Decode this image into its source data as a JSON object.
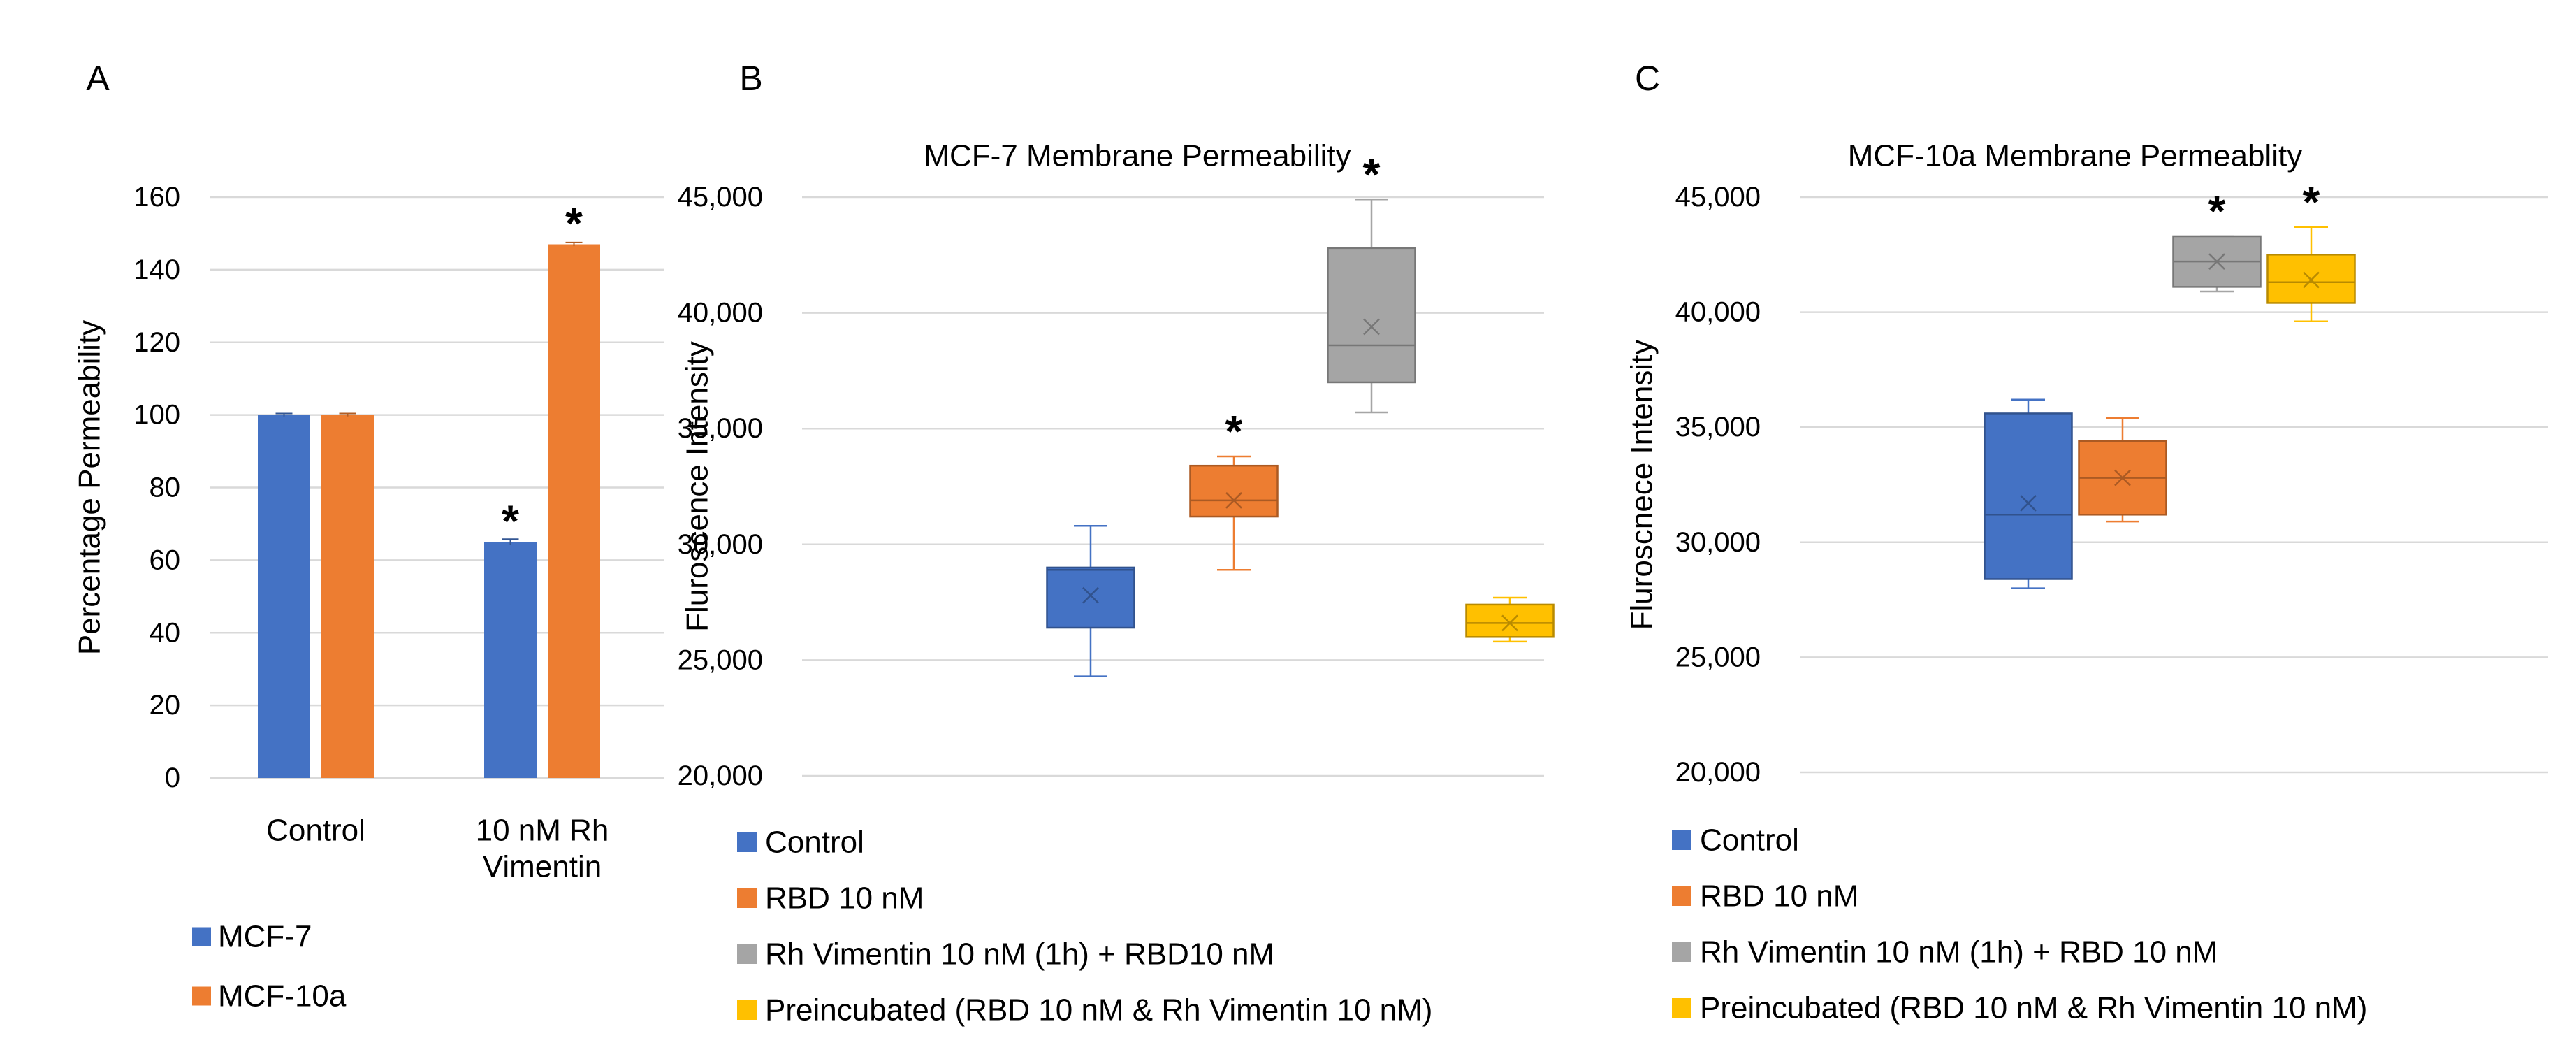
{
  "colors": {
    "Control": "#4472c4",
    "RBD": "#ed7d31",
    "Rh Vimentin": "#a5a5a5",
    "Preincubated": "#ffc000",
    "grid": "#d9d9d9"
  },
  "chart_data": [
    {
      "panel": "A",
      "type": "bar",
      "title": "",
      "xlabel": "",
      "ylabel": "Percentage Permeability",
      "ylim": [
        0,
        160
      ],
      "yticks": [
        "0",
        "20",
        "40",
        "60",
        "80",
        "100",
        "120",
        "140",
        "160"
      ],
      "categories": [
        {
          "lines": [
            "Control"
          ]
        },
        {
          "lines": [
            "10 nM Rh",
            "Vimentin"
          ]
        }
      ],
      "series": [
        {
          "name": "MCF-7",
          "color": "#4472c4",
          "values": [
            100,
            65
          ],
          "errors": [
            0.4,
            0.8
          ],
          "significant": [
            false,
            true
          ]
        },
        {
          "name": "MCF-10a",
          "color": "#ed7d31",
          "values": [
            100,
            147
          ],
          "errors": [
            0.4,
            0.5
          ],
          "significant": [
            false,
            true
          ]
        }
      ],
      "star": "*",
      "legend_position": "bottom"
    },
    {
      "panel": "B",
      "type": "box",
      "title": "MCF-7  Membrane Permeability",
      "xlabel": "",
      "ylabel": "Fluroscence Intensity",
      "ylim": [
        20000,
        45000
      ],
      "yticks": [
        "20,000",
        "25,000",
        "30,000",
        "35,000",
        "40,000",
        "45,000"
      ],
      "series": [
        {
          "name": "Control",
          "color": "#4472c4",
          "min": 24300,
          "q1": 26400,
          "median": 28900,
          "q3": 29000,
          "max": 30800,
          "mean": 27800,
          "significant": false
        },
        {
          "name": "RBD 10 nM",
          "color": "#ed7d31",
          "min": 28900,
          "q1": 31200,
          "median": 31900,
          "q3": 33400,
          "max": 33800,
          "mean": 31900,
          "significant": true
        },
        {
          "name": "Rh Vimentin 10 nM (1h) + RBD10 nM",
          "color": "#a5a5a5",
          "min": 35700,
          "q1": 37000,
          "median": 38600,
          "q3": 42800,
          "max": 44900,
          "mean": 39400,
          "significant": true
        },
        {
          "name": "Preincubated (RBD 10 nM & Rh Vimentin 10 nM)",
          "color": "#ffc000",
          "min": 25800,
          "q1": 26000,
          "median": 26600,
          "q3": 27400,
          "max": 27700,
          "mean": 26600,
          "significant": false
        }
      ],
      "star": "*",
      "legend_position": "bottom"
    },
    {
      "panel": "C",
      "type": "box",
      "title": "MCF-10a Membrane Permeablity",
      "xlabel": "",
      "ylabel": "Fluroscnece Intensity",
      "ylim": [
        20000,
        45000
      ],
      "yticks": [
        "20,000",
        "25,000",
        "30,000",
        "35,000",
        "40,000",
        "45,000"
      ],
      "series": [
        {
          "name": "Control",
          "color": "#4472c4",
          "min": 28000,
          "q1": 28400,
          "median": 31200,
          "q3": 35600,
          "max": 36200,
          "mean": 31700,
          "significant": false
        },
        {
          "name": "RBD 10 nM",
          "color": "#ed7d31",
          "min": 30900,
          "q1": 31200,
          "median": 32800,
          "q3": 34400,
          "max": 35400,
          "mean": 32800,
          "significant": false
        },
        {
          "name": "Rh Vimentin 10 nM (1h) + RBD 10 nM",
          "color": "#a5a5a5",
          "min": 40900,
          "q1": 41100,
          "median": 42200,
          "q3": 43300,
          "max": 43300,
          "mean": 42200,
          "significant": true
        },
        {
          "name": "Preincubated (RBD 10 nM & Rh Vimentin 10 nM)",
          "color": "#ffc000",
          "min": 39600,
          "q1": 40400,
          "median": 41300,
          "q3": 42500,
          "max": 43700,
          "mean": 41400,
          "significant": true
        }
      ],
      "star": "*",
      "legend_position": "bottom"
    }
  ]
}
